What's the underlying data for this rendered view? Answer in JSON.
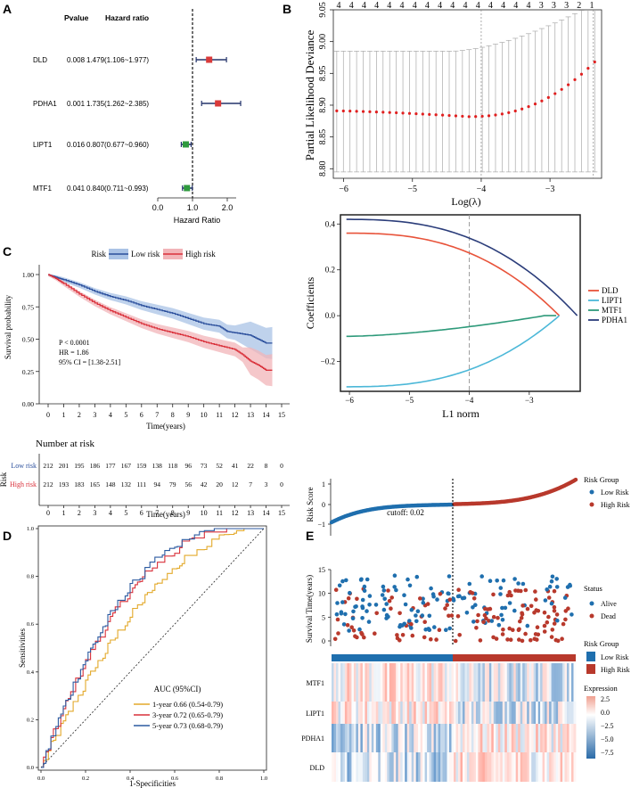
{
  "panel_labels": {
    "A": "A",
    "B": "B",
    "C": "C",
    "D": "D",
    "E": "E"
  },
  "chart_data": [
    {
      "id": "A",
      "type": "forest",
      "columns": {
        "pvalue": "Pvalue",
        "hr": "Hazard ratio"
      },
      "xlabel": "Hazard Ratio",
      "xlim": [
        0,
        2.5
      ],
      "ticks": [
        0.0,
        1.0,
        2.0
      ],
      "tick_labels": [
        "0.0",
        "1.0",
        "2.0"
      ],
      "rows": [
        {
          "gene": "DLD",
          "p": "0.008",
          "hr_text": "1.479(1.106~1.977)",
          "hr": 1.479,
          "lo": 1.106,
          "hi": 1.977,
          "color": "#d93a3a"
        },
        {
          "gene": "PDHA1",
          "p": "0.001",
          "hr_text": "1.735(1.262~2.385)",
          "hr": 1.735,
          "lo": 1.262,
          "hi": 2.385,
          "color": "#d93a3a"
        },
        {
          "gene": "LIPT1",
          "p": "0.016",
          "hr_text": "0.807(0.677~0.960)",
          "hr": 0.807,
          "lo": 0.677,
          "hi": 0.96,
          "color": "#2f9a3e"
        },
        {
          "gene": "MTF1",
          "p": "0.041",
          "hr_text": "0.840(0.711~0.993)",
          "hr": 0.84,
          "lo": 0.711,
          "hi": 0.993,
          "color": "#2f9a3e"
        }
      ]
    },
    {
      "id": "B",
      "type": "scatter-errorbar",
      "ylabel": "Partial Likelihood Deviance",
      "xlabel": "Log(λ)",
      "xlim": [
        -6.15,
        -2.25
      ],
      "ylim": [
        8.785,
        9.05
      ],
      "xticks": [
        -6,
        -5,
        -4,
        -3
      ],
      "xtick_labels": [
        "−6",
        "−5",
        "−4",
        "−3"
      ],
      "yticks": [
        8.8,
        8.85,
        8.9,
        8.95,
        9.0,
        9.05
      ],
      "ytick_labels": [
        "8.80",
        "8.85",
        "8.90",
        "8.95",
        "9.00",
        "9.05"
      ],
      "top_counts": [
        "4",
        "4",
        "4",
        "4",
        "4",
        "4",
        "4",
        "4",
        "4",
        "4",
        "4",
        "4",
        "4",
        "4",
        "4",
        "4",
        "3",
        "3",
        "3",
        "2",
        "1"
      ],
      "vlines": [
        -4.0,
        -2.37
      ],
      "x_start": -6.1,
      "x_end": -2.35,
      "n_points": 40,
      "mean_min": 8.882,
      "mean_start": 8.891,
      "mean_end": 8.968,
      "err_low": 8.795,
      "err_high_start": 8.985,
      "err_high_end": 9.06,
      "point_color": "#e02020"
    },
    {
      "id": "B2",
      "type": "line",
      "ylabel": "Coefficients",
      "xlabel": "L1 norm",
      "xlim": [
        -6.15,
        -2.15
      ],
      "ylim": [
        -0.33,
        0.44
      ],
      "xticks": [
        -6,
        -5,
        -4,
        -3
      ],
      "xtick_labels": [
        "−6",
        "−5",
        "−4",
        "−3"
      ],
      "yticks": [
        -0.2,
        0.0,
        0.2,
        0.4
      ],
      "ytick_labels": [
        "−0.2",
        "0.0",
        "0.2",
        "0.4"
      ],
      "vline": -4.0,
      "series": [
        {
          "name": "DLD",
          "color": "#e8533a",
          "start": 0.36,
          "end_x": -2.5
        },
        {
          "name": "LIPT1",
          "color": "#4cb8d8",
          "start": -0.31,
          "end_x": -2.5
        },
        {
          "name": "MTF1",
          "color": "#2e9a7a",
          "start": -0.09,
          "end_x": -2.75
        },
        {
          "name": "PDHA1",
          "color": "#2b3d7a",
          "start": 0.42,
          "end_x": -2.2
        }
      ]
    },
    {
      "id": "C",
      "type": "km",
      "legend_title": "Risk",
      "series_names": [
        "Low risk",
        "High risk"
      ],
      "colors": [
        "#2b4f9c",
        "#d9303a"
      ],
      "ylabel": "Survival probability",
      "xlabel": "Time(years)",
      "xticks": [
        "0",
        "1",
        "2",
        "3",
        "4",
        "5",
        "6",
        "7",
        "8",
        "9",
        "10",
        "11",
        "12",
        "13",
        "14",
        "15"
      ],
      "yticks": [
        "0.00",
        "0.25",
        "0.50",
        "0.75",
        "1.00"
      ],
      "stats": [
        "P < 0.0001",
        "HR = 1.86",
        "95% CI = [1.38-2.51]"
      ],
      "low_x": [
        0,
        0.5,
        1,
        2,
        3,
        4,
        5,
        6,
        7,
        8,
        9,
        10,
        11,
        11.5,
        12,
        13,
        13.5,
        14,
        14.4
      ],
      "low_y": [
        1,
        0.98,
        0.96,
        0.92,
        0.87,
        0.83,
        0.8,
        0.76,
        0.73,
        0.7,
        0.66,
        0.62,
        0.6,
        0.56,
        0.55,
        0.53,
        0.5,
        0.47,
        0.47
      ],
      "high_x": [
        0,
        0.5,
        1,
        2,
        3,
        4,
        5,
        6,
        7,
        8,
        9,
        10,
        11,
        12,
        12.5,
        13,
        13.5,
        14,
        14.4
      ],
      "high_y": [
        1,
        0.97,
        0.93,
        0.85,
        0.78,
        0.72,
        0.67,
        0.62,
        0.58,
        0.55,
        0.52,
        0.48,
        0.45,
        0.42,
        0.38,
        0.33,
        0.3,
        0.26,
        0.26
      ],
      "risk_table": {
        "title": "Number at risk",
        "row_axis": "Risk",
        "rows": [
          {
            "label": "Low risk",
            "color": "#2b4f9c",
            "counts": [
              "212",
              "201",
              "195",
              "186",
              "177",
              "167",
              "159",
              "138",
              "118",
              "96",
              "73",
              "52",
              "41",
              "22",
              "8",
              "0"
            ]
          },
          {
            "label": "High risk",
            "color": "#d9303a",
            "counts": [
              "212",
              "193",
              "183",
              "165",
              "148",
              "132",
              "111",
              "94",
              "79",
              "56",
              "42",
              "20",
              "12",
              "7",
              "3",
              "0"
            ]
          }
        ],
        "xlabel": "Time(years)",
        "xticks": [
          "0",
          "1",
          "2",
          "3",
          "4",
          "5",
          "6",
          "7",
          "8",
          "9",
          "10",
          "11",
          "12",
          "13",
          "14",
          "15"
        ]
      }
    },
    {
      "id": "D",
      "type": "roc",
      "xlabel": "1-Specificities",
      "ylabel": "Sensitivities",
      "ticks": [
        "0.0",
        "0.2",
        "0.4",
        "0.6",
        "0.8",
        "1.0"
      ],
      "legend_title": "AUC (95%CI)",
      "series": [
        {
          "name": "1-year 0.66 (0.54-0.79)",
          "color": "#e3a92a",
          "auc": 0.66
        },
        {
          "name": "3-year 0.72 (0.65-0.79)",
          "color": "#d9303a",
          "auc": 0.72
        },
        {
          "name": "5-year 0.73 (0.68-0.79)",
          "color": "#2c5aa0",
          "auc": 0.73
        }
      ]
    },
    {
      "id": "E",
      "type": "risk-heatmap",
      "risk_ylabel": "Risk Score",
      "cutoff_label": "cutoff: 0.02",
      "risk_yticks": [
        "−1",
        "0",
        "1"
      ],
      "surv_ylabel": "Survival Time(years)",
      "surv_yticks": [
        "0",
        "5",
        "10",
        "15"
      ],
      "legend_risk_title": "Risk Group",
      "risk_groups": [
        "Low Risk",
        "High Risk"
      ],
      "risk_colors": [
        "#1f6fae",
        "#b8392c"
      ],
      "legend_status_title": "Status",
      "statuses": [
        "Alive",
        "Dead"
      ],
      "status_colors": [
        "#1f6fae",
        "#b8392c"
      ],
      "legend_group_title": "Risk Group",
      "groups": [
        "Low Risk",
        "High Risk"
      ],
      "heatmap_genes": [
        "MTF1",
        "LIPT1",
        "PDHA1",
        "DLD"
      ],
      "legend_expr_title": "Expression",
      "expr_ticks": [
        "2.5",
        "0.0",
        "−2.5",
        "−5.0",
        "−7.5"
      ]
    }
  ]
}
